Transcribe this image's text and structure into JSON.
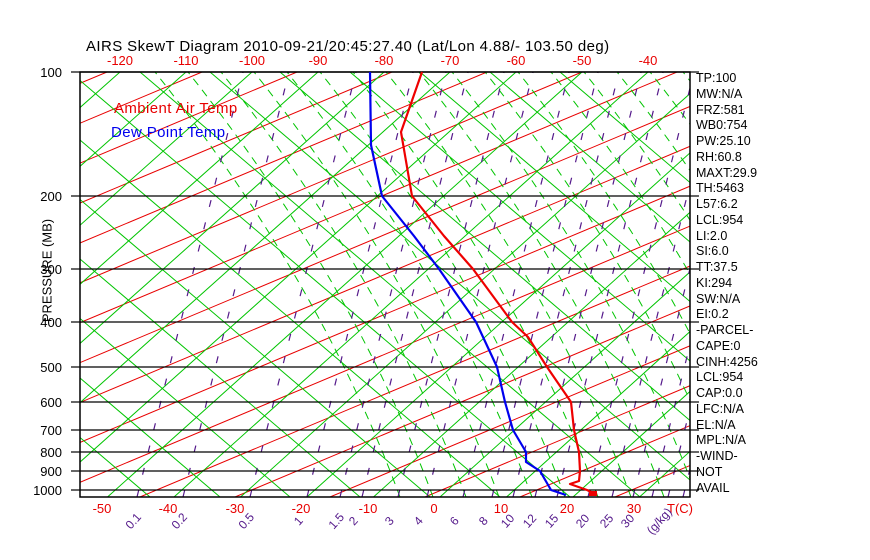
{
  "title": "AIRS SkewT Diagram 2010-09-21/20:45:27.40 (Lat/Lon 4.88/- 103.50 deg)",
  "legend": {
    "ambient": "Ambient Air Temp",
    "dewpoint": "Dew Point Temp"
  },
  "axes": {
    "pressure": {
      "label": "PRESSURE (MB)",
      "ticks": [
        100,
        200,
        300,
        400,
        500,
        600,
        700,
        800,
        900,
        1000
      ]
    },
    "temp_top": {
      "ticks": [
        -120,
        -110,
        -100,
        -90,
        -80,
        -70,
        -60,
        -50,
        -40
      ]
    },
    "temp_bottom": {
      "ticks": [
        -50,
        -40,
        -30,
        -20,
        -10,
        0,
        10,
        20,
        30
      ],
      "unit": "T(C)"
    },
    "mixing_ratio": {
      "ticks": [
        0.1,
        0.2,
        0.5,
        1,
        1.5,
        2,
        3,
        4,
        6,
        8,
        10,
        12,
        15,
        20,
        25,
        30
      ],
      "unit": "(g/kg)"
    }
  },
  "stats": [
    "TP:100",
    "MW:N/A",
    "FRZ:581",
    "WB0:754",
    "PW:25.10",
    "RH:60.8",
    "MAXT:29.9",
    "TH:5463",
    "L57:6.2",
    "LCL:954",
    "LI:2.0",
    "SI:6.0",
    "TT:37.5",
    "KI:294",
    "SW:N/A",
    "EI:0.2",
    "-PARCEL-",
    "CAPE:0",
    "CINH:4256",
    "LCL:954",
    "CAP:0.0",
    "LFC:N/A",
    "EL:N/A",
    "MPL:N/A",
    "-WIND-",
    "NOT",
    "AVAIL"
  ],
  "colors": {
    "isotherm_green": "#00c400",
    "moist_adiabat_green": "#00c400",
    "background_red": "#e80000",
    "mixing_purple": "#551A8B",
    "temp_profile": "#ee0000",
    "dewpoint_profile": "#0000ee",
    "axis_black": "#000000"
  },
  "chart_data": {
    "type": "line",
    "title": "AIRS SkewT Diagram 2010-09-21/20:45:27.40",
    "xlabel": "T(C)",
    "ylabel": "PRESSURE (MB)",
    "y_scale": "log-pressure, inverted (skew-T)",
    "x_axis_bottom_ticks": [
      -50,
      -40,
      -30,
      -20,
      -10,
      0,
      10,
      20,
      30
    ],
    "x_axis_top_ticks": [
      -120,
      -110,
      -100,
      -90,
      -80,
      -70,
      -60,
      -50,
      -40
    ],
    "pressure_ticks_mb": [
      100,
      200,
      300,
      400,
      500,
      600,
      700,
      800,
      900,
      1000
    ],
    "mixing_ratio_ticks_g_per_kg": [
      0.1,
      0.2,
      0.5,
      1,
      1.5,
      2,
      3,
      4,
      6,
      8,
      10,
      12,
      15,
      20,
      25,
      30
    ],
    "isotherm_interval_C": 10,
    "grid": "skew-T lattice (isotherms, adiabats, mixing-ratio lines)",
    "legend_position": "top-left inside plot",
    "series": [
      {
        "name": "Ambient Air Temp",
        "color": "#ee0000",
        "units": {
          "x": "C",
          "y": "mb"
        },
        "points": [
          [
            100,
            -73.7
          ],
          [
            140,
            -66.8
          ],
          [
            200,
            -54.5
          ],
          [
            250,
            -43.0
          ],
          [
            300,
            -33.1
          ],
          [
            400,
            -18.4
          ],
          [
            430,
            -13.5
          ],
          [
            500,
            -5.6
          ],
          [
            600,
            3.9
          ],
          [
            700,
            8.9
          ],
          [
            800,
            13.4
          ],
          [
            900,
            16.7
          ],
          [
            950,
            18.2
          ],
          [
            965,
            17.3
          ],
          [
            1000,
            21.0
          ],
          [
            1030,
            23.2
          ]
        ]
      },
      {
        "name": "Dew Point Temp",
        "color": "#0000ee",
        "units": {
          "x": "C",
          "y": "mb"
        },
        "points": [
          [
            100,
            -81.5
          ],
          [
            150,
            -69.3
          ],
          [
            200,
            -59.0
          ],
          [
            250,
            -47.5
          ],
          [
            300,
            -38.2
          ],
          [
            400,
            -23.8
          ],
          [
            500,
            -13.1
          ],
          [
            600,
            -6.1
          ],
          [
            700,
            -0.2
          ],
          [
            800,
            5.4
          ],
          [
            850,
            7.0
          ],
          [
            900,
            10.7
          ],
          [
            1000,
            15.5
          ],
          [
            1030,
            18.6
          ]
        ]
      }
    ]
  }
}
